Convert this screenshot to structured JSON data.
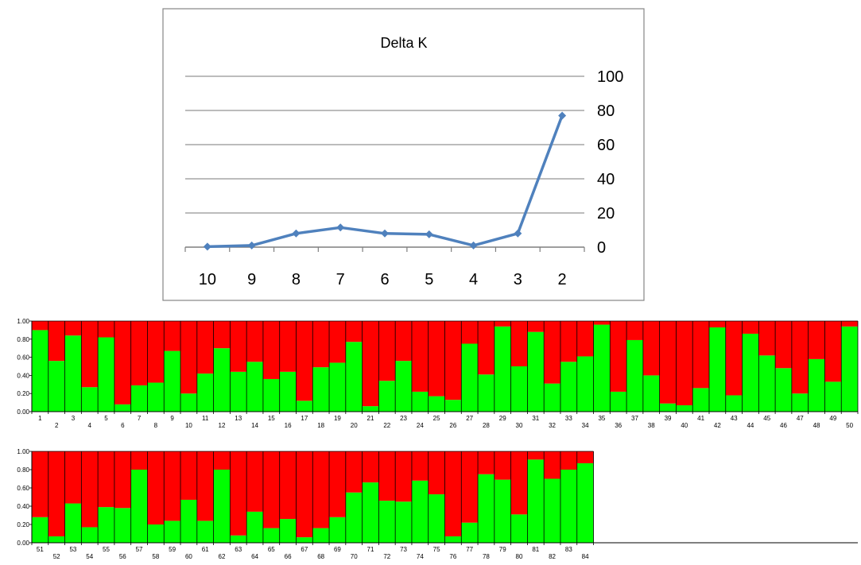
{
  "chart_data": [
    {
      "type": "line",
      "title": "Delta K",
      "x": [
        "10",
        "9",
        "8",
        "7",
        "6",
        "5",
        "4",
        "3",
        "2"
      ],
      "series": [
        {
          "values": [
            0.3,
            1.0,
            8.0,
            11.5,
            8.0,
            7.5,
            1.0,
            8.0,
            77.0
          ]
        }
      ],
      "ylim": [
        0,
        100
      ],
      "y_ticks": [
        "0",
        "20",
        "40",
        "60",
        "80",
        "100"
      ],
      "y_axis_side": "right",
      "grid": true,
      "legend": "none",
      "line_color": "#4f81bd"
    },
    {
      "type": "bar",
      "stacked": true,
      "categories": [
        "1",
        "2",
        "3",
        "4",
        "5",
        "6",
        "7",
        "8",
        "9",
        "10",
        "11",
        "12",
        "13",
        "14",
        "15",
        "16",
        "17",
        "18",
        "19",
        "20",
        "21",
        "22",
        "23",
        "24",
        "25",
        "26",
        "27",
        "28",
        "29",
        "30",
        "31",
        "32",
        "33",
        "34",
        "35",
        "36",
        "37",
        "38",
        "39",
        "40",
        "41",
        "42",
        "43",
        "44",
        "45",
        "46",
        "47",
        "48",
        "49",
        "50"
      ],
      "series": [
        {
          "color": "#00ff00",
          "values": [
            0.9,
            0.56,
            0.84,
            0.27,
            0.82,
            0.08,
            0.29,
            0.32,
            0.67,
            0.2,
            0.42,
            0.7,
            0.44,
            0.55,
            0.36,
            0.44,
            0.12,
            0.49,
            0.54,
            0.77,
            0.06,
            0.34,
            0.56,
            0.22,
            0.17,
            0.13,
            0.75,
            0.41,
            0.94,
            0.5,
            0.88,
            0.31,
            0.55,
            0.61,
            0.96,
            0.22,
            0.79,
            0.4,
            0.09,
            0.07,
            0.26,
            0.93,
            0.18,
            0.86,
            0.62,
            0.48,
            0.2,
            0.58,
            0.33,
            0.94
          ]
        },
        {
          "color": "#ff0000",
          "values": [
            0.1,
            0.44,
            0.16,
            0.73,
            0.18,
            0.92,
            0.71,
            0.68,
            0.33,
            0.8,
            0.58,
            0.3,
            0.56,
            0.45,
            0.64,
            0.56,
            0.88,
            0.51,
            0.46,
            0.23,
            0.94,
            0.66,
            0.44,
            0.78,
            0.83,
            0.87,
            0.25,
            0.59,
            0.06,
            0.5,
            0.12,
            0.69,
            0.45,
            0.39,
            0.04,
            0.78,
            0.21,
            0.6,
            0.91,
            0.93,
            0.74,
            0.07,
            0.82,
            0.14,
            0.38,
            0.52,
            0.8,
            0.42,
            0.67,
            0.06
          ]
        }
      ],
      "ylim": [
        0,
        1
      ],
      "y_ticks": [
        "0.00",
        "0.20",
        "0.40",
        "0.60",
        "0.80",
        "1.00"
      ],
      "grid": false,
      "legend": "none"
    },
    {
      "type": "bar",
      "stacked": true,
      "categories": [
        "51",
        "52",
        "53",
        "54",
        "55",
        "56",
        "57",
        "58",
        "59",
        "60",
        "61",
        "62",
        "63",
        "64",
        "65",
        "66",
        "67",
        "68",
        "69",
        "70",
        "71",
        "72",
        "73",
        "74",
        "75",
        "76",
        "77",
        "78",
        "79",
        "80",
        "81",
        "82",
        "83",
        "84"
      ],
      "series": [
        {
          "color": "#00ff00",
          "values": [
            0.28,
            0.07,
            0.43,
            0.17,
            0.39,
            0.38,
            0.8,
            0.2,
            0.24,
            0.47,
            0.24,
            0.8,
            0.08,
            0.34,
            0.16,
            0.26,
            0.06,
            0.16,
            0.28,
            0.55,
            0.66,
            0.46,
            0.45,
            0.68,
            0.53,
            0.07,
            0.22,
            0.75,
            0.69,
            0.31,
            0.91,
            0.7,
            0.8,
            0.87
          ]
        },
        {
          "color": "#ff0000",
          "values": [
            0.72,
            0.93,
            0.57,
            0.83,
            0.61,
            0.62,
            0.2,
            0.8,
            0.76,
            0.53,
            0.76,
            0.2,
            0.92,
            0.66,
            0.84,
            0.74,
            0.94,
            0.84,
            0.72,
            0.45,
            0.34,
            0.54,
            0.55,
            0.32,
            0.47,
            0.93,
            0.78,
            0.25,
            0.31,
            0.69,
            0.09,
            0.3,
            0.2,
            0.13
          ]
        }
      ],
      "ylim": [
        0,
        1
      ],
      "y_ticks": [
        "0.00",
        "0.20",
        "0.40",
        "0.60",
        "0.80",
        "1.00"
      ],
      "grid": false,
      "legend": "none"
    }
  ]
}
